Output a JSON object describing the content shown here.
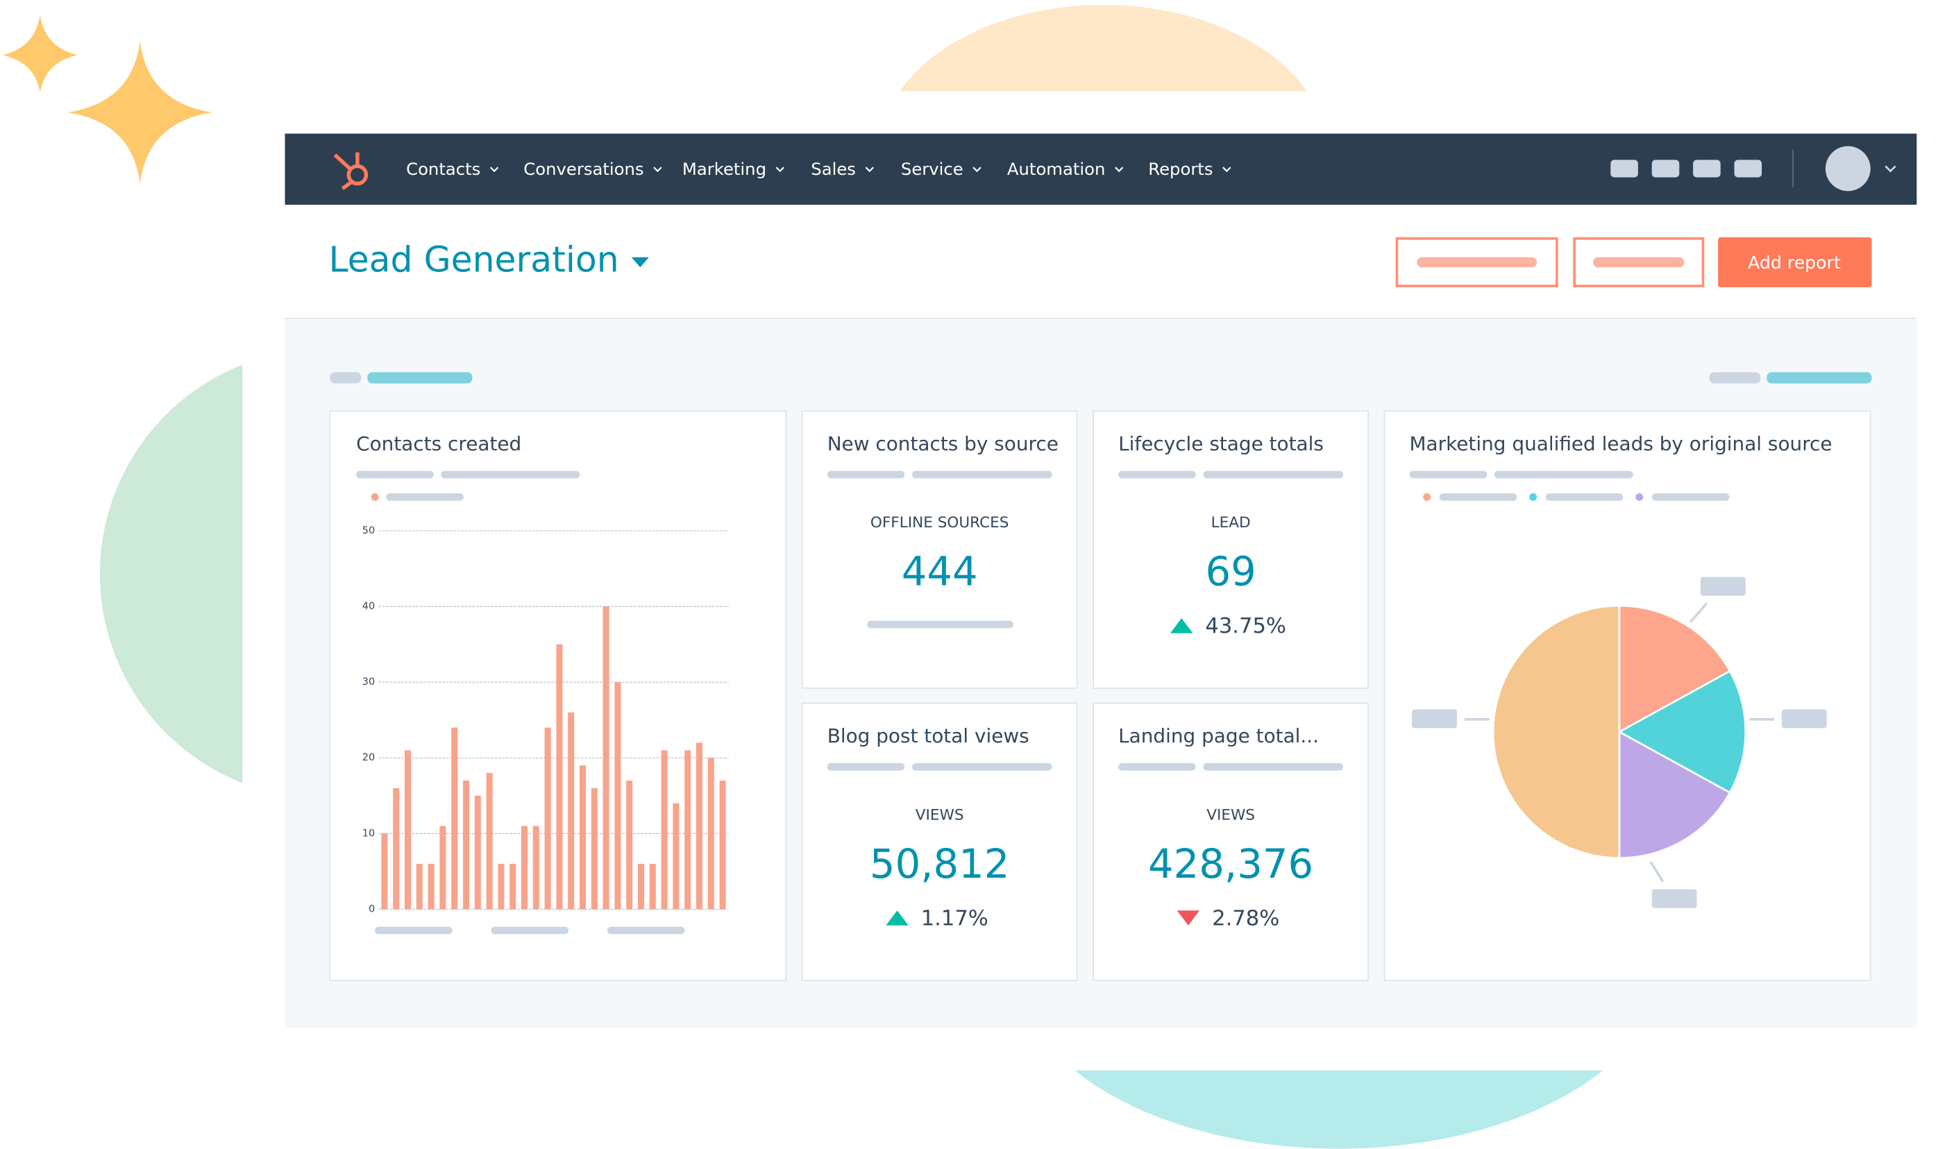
{
  "nav": {
    "items": [
      "Contacts",
      "Conversations",
      "Marketing",
      "Sales",
      "Service",
      "Automation",
      "Reports"
    ]
  },
  "header": {
    "title": "Lead Generation",
    "button": "Add report"
  },
  "kpis": [
    {
      "title": "New contacts by source",
      "label": "OFFLINE SOURCES",
      "value": "444"
    },
    {
      "title": "Lifecycle stage totals",
      "label": "LEAD",
      "value": "69",
      "change": "43.75%",
      "trend": "up"
    },
    {
      "title": "Blog post total views",
      "label": "VIEWS",
      "value": "50,812",
      "change": "1.17%",
      "trend": "up"
    },
    {
      "title": "Landing page total...",
      "label": "VIEWS",
      "value": "428,376",
      "change": "2.78%",
      "trend": "down"
    }
  ],
  "chart_data": [
    {
      "type": "bar",
      "title": "Contacts created",
      "categories": [
        null,
        null,
        null,
        null,
        null,
        null,
        null,
        null,
        null,
        null,
        null,
        null,
        null,
        null,
        null,
        null,
        null,
        null,
        null,
        null,
        null,
        null,
        null,
        null,
        null,
        null,
        null,
        null,
        null,
        null
      ],
      "values": [
        10,
        16,
        21,
        6,
        6,
        11,
        24,
        17,
        15,
        18,
        6,
        6,
        11,
        11,
        24,
        35,
        26,
        19,
        16,
        40,
        30,
        17,
        6,
        6,
        21,
        14,
        21,
        22,
        20,
        17
      ],
      "color": "#f8a38a",
      "ylim": [
        0,
        50
      ],
      "yticks": [
        0,
        10,
        20,
        30,
        40,
        50
      ],
      "grid": true
    },
    {
      "type": "pie",
      "title": "Marketing qualified leads by original source",
      "categories": [
        null,
        null,
        null,
        null
      ],
      "values": [
        17,
        16,
        17,
        50
      ],
      "colors": [
        "#fea58e",
        "#51d3d9",
        "#bea7e6",
        "#f5c78e"
      ]
    }
  ]
}
